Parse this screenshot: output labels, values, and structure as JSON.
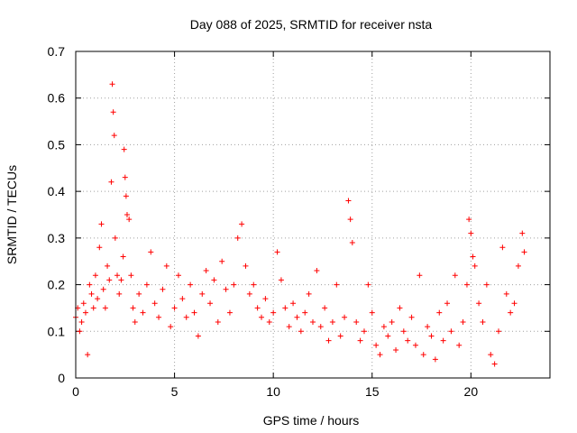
{
  "chart_data": {
    "type": "scatter",
    "title": "Day 088 of 2025, SRMTID for receiver nsta",
    "xlabel": "GPS time / hours",
    "ylabel": "SRMTID / TECUs",
    "xlim": [
      0,
      24
    ],
    "ylim": [
      0,
      0.7
    ],
    "xticks": [
      0,
      5,
      10,
      15,
      20
    ],
    "yticks": [
      0,
      0.1,
      0.2,
      0.3,
      0.4,
      0.5,
      0.6,
      0.7
    ],
    "xtick_labels": [
      "0",
      "5",
      "10",
      "15",
      "20"
    ],
    "ytick_labels": [
      "0",
      "0.1",
      "0.2",
      "0.3",
      "0.4",
      "0.5",
      "0.6",
      "0.7"
    ],
    "grid": true,
    "marker": "+",
    "color": "#ff0000",
    "series": [
      {
        "name": "SRMTID",
        "x": [
          0.0,
          0.1,
          0.2,
          0.3,
          0.4,
          0.5,
          0.6,
          0.7,
          0.8,
          0.9,
          1.0,
          1.1,
          1.2,
          1.3,
          1.4,
          1.5,
          1.6,
          1.7,
          1.8,
          1.85,
          1.9,
          1.95,
          2.0,
          2.1,
          2.2,
          2.3,
          2.4,
          2.45,
          2.5,
          2.55,
          2.6,
          2.7,
          2.8,
          2.9,
          3.0,
          3.2,
          3.4,
          3.6,
          3.8,
          4.0,
          4.2,
          4.4,
          4.6,
          4.8,
          5.0,
          5.2,
          5.4,
          5.6,
          5.8,
          6.0,
          6.2,
          6.4,
          6.6,
          6.8,
          7.0,
          7.2,
          7.4,
          7.6,
          7.8,
          8.0,
          8.2,
          8.4,
          8.6,
          8.8,
          9.0,
          9.2,
          9.4,
          9.6,
          9.8,
          10.0,
          10.2,
          10.4,
          10.6,
          10.8,
          11.0,
          11.2,
          11.4,
          11.6,
          11.8,
          12.0,
          12.2,
          12.4,
          12.6,
          12.8,
          13.0,
          13.2,
          13.4,
          13.6,
          13.8,
          13.9,
          14.0,
          14.2,
          14.4,
          14.6,
          14.8,
          15.0,
          15.2,
          15.4,
          15.6,
          15.8,
          16.0,
          16.2,
          16.4,
          16.6,
          16.8,
          17.0,
          17.2,
          17.4,
          17.6,
          17.8,
          18.0,
          18.2,
          18.4,
          18.6,
          18.8,
          19.0,
          19.2,
          19.4,
          19.6,
          19.8,
          19.9,
          20.0,
          20.1,
          20.2,
          20.4,
          20.6,
          20.8,
          21.0,
          21.2,
          21.4,
          21.6,
          21.8,
          22.0,
          22.2,
          22.4,
          22.6,
          22.7
        ],
        "y": [
          0.13,
          0.15,
          0.1,
          0.12,
          0.16,
          0.14,
          0.05,
          0.2,
          0.18,
          0.15,
          0.22,
          0.17,
          0.28,
          0.33,
          0.19,
          0.15,
          0.24,
          0.21,
          0.42,
          0.63,
          0.57,
          0.52,
          0.3,
          0.22,
          0.18,
          0.21,
          0.26,
          0.49,
          0.43,
          0.39,
          0.35,
          0.34,
          0.22,
          0.15,
          0.12,
          0.18,
          0.14,
          0.2,
          0.27,
          0.16,
          0.13,
          0.19,
          0.24,
          0.11,
          0.15,
          0.22,
          0.17,
          0.13,
          0.2,
          0.14,
          0.09,
          0.18,
          0.23,
          0.16,
          0.21,
          0.12,
          0.25,
          0.19,
          0.14,
          0.2,
          0.3,
          0.33,
          0.24,
          0.18,
          0.2,
          0.15,
          0.13,
          0.17,
          0.12,
          0.14,
          0.27,
          0.21,
          0.15,
          0.11,
          0.16,
          0.13,
          0.1,
          0.14,
          0.18,
          0.12,
          0.23,
          0.11,
          0.15,
          0.08,
          0.12,
          0.2,
          0.09,
          0.13,
          0.38,
          0.34,
          0.29,
          0.12,
          0.08,
          0.1,
          0.2,
          0.14,
          0.07,
          0.05,
          0.11,
          0.09,
          0.12,
          0.06,
          0.15,
          0.1,
          0.08,
          0.13,
          0.07,
          0.22,
          0.05,
          0.11,
          0.09,
          0.04,
          0.14,
          0.08,
          0.16,
          0.1,
          0.22,
          0.07,
          0.12,
          0.2,
          0.34,
          0.31,
          0.26,
          0.24,
          0.16,
          0.12,
          0.2,
          0.05,
          0.03,
          0.1,
          0.28,
          0.18,
          0.14,
          0.16,
          0.24,
          0.31,
          0.27
        ]
      }
    ]
  }
}
